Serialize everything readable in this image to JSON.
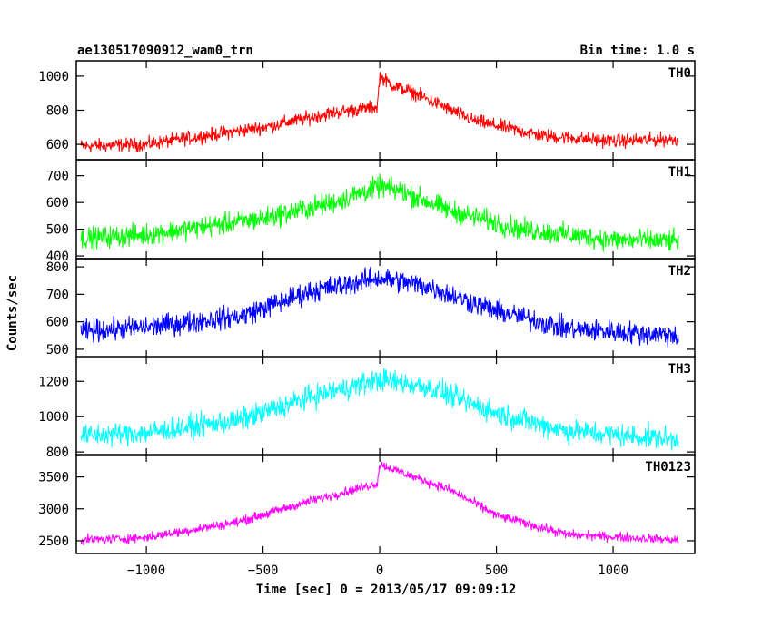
{
  "header": {
    "title": "ae130517090912_wam0_trn",
    "bin_time": "Bin time: 1.0 s"
  },
  "chart_data": {
    "type": "line",
    "title": "ae130517090912_wam0_trn",
    "subtitle": "Bin time: 1.0 s",
    "xlabel": "Time [sec] 0 = 2013/05/17 09:09:12",
    "ylabel": "Counts/sec",
    "xlim": [
      -1300,
      1350
    ],
    "x_ticks": [
      -1000,
      -500,
      0,
      500,
      1000
    ],
    "x_tick_labels": [
      "−1000",
      "−500",
      "0",
      "500",
      "1000"
    ],
    "x_range": [
      -1280,
      1280
    ],
    "grid": false,
    "panels": [
      {
        "name": "TH0",
        "color": "#ff0000",
        "ylim": [
          510,
          1090
        ],
        "y_ticks": [
          600,
          800,
          1000
        ],
        "y_tick_labels": [
          "600",
          "800",
          "1000"
        ],
        "noise": 25,
        "profile": [
          [
            -1280,
            590
          ],
          [
            -1000,
            600
          ],
          [
            -500,
            700
          ],
          [
            -200,
            785
          ],
          [
            -10,
            820
          ],
          [
            0,
            1000
          ],
          [
            50,
            950
          ],
          [
            150,
            900
          ],
          [
            400,
            740
          ],
          [
            700,
            650
          ],
          [
            1000,
            620
          ],
          [
            1280,
            630
          ]
        ]
      },
      {
        "name": "TH1",
        "color": "#00ff00",
        "ylim": [
          390,
          760
        ],
        "y_ticks": [
          400,
          500,
          600,
          700
        ],
        "y_tick_labels": [
          "400",
          "500",
          "600",
          "700"
        ],
        "noise": 25,
        "profile": [
          [
            -1280,
            465
          ],
          [
            -1000,
            480
          ],
          [
            -500,
            540
          ],
          [
            -200,
            600
          ],
          [
            0,
            660
          ],
          [
            100,
            640
          ],
          [
            300,
            570
          ],
          [
            600,
            500
          ],
          [
            1000,
            460
          ],
          [
            1280,
            455
          ]
        ]
      },
      {
        "name": "TH2",
        "color": "#0000ff",
        "ylim": [
          470,
          830
        ],
        "y_ticks": [
          500,
          600,
          700,
          800
        ],
        "y_tick_labels": [
          "500",
          "600",
          "700",
          "800"
        ],
        "noise": 25,
        "profile": [
          [
            -1280,
            565
          ],
          [
            -1000,
            580
          ],
          [
            -600,
            620
          ],
          [
            -300,
            710
          ],
          [
            0,
            760
          ],
          [
            200,
            730
          ],
          [
            500,
            640
          ],
          [
            800,
            575
          ],
          [
            1280,
            550
          ]
        ]
      },
      {
        "name": "TH3",
        "color": "#00ffff",
        "ylim": [
          780,
          1340
        ],
        "y_ticks": [
          800,
          1000,
          1200
        ],
        "y_tick_labels": [
          "800",
          "1000",
          "1200"
        ],
        "noise": 40,
        "profile": [
          [
            -1280,
            890
          ],
          [
            -1000,
            910
          ],
          [
            -600,
            980
          ],
          [
            -300,
            1110
          ],
          [
            0,
            1210
          ],
          [
            200,
            1170
          ],
          [
            500,
            1020
          ],
          [
            800,
            920
          ],
          [
            1280,
            870
          ]
        ]
      },
      {
        "name": "TH0123",
        "color": "#ff00ff",
        "ylim": [
          2300,
          3850
        ],
        "y_ticks": [
          2500,
          3000,
          3500
        ],
        "y_tick_labels": [
          "2500",
          "3000",
          "3500"
        ],
        "noise": 45,
        "profile": [
          [
            -1280,
            2510
          ],
          [
            -1000,
            2550
          ],
          [
            -600,
            2800
          ],
          [
            -300,
            3120
          ],
          [
            -10,
            3400
          ],
          [
            0,
            3700
          ],
          [
            100,
            3560
          ],
          [
            300,
            3300
          ],
          [
            500,
            2900
          ],
          [
            800,
            2600
          ],
          [
            1280,
            2510
          ]
        ]
      }
    ]
  }
}
